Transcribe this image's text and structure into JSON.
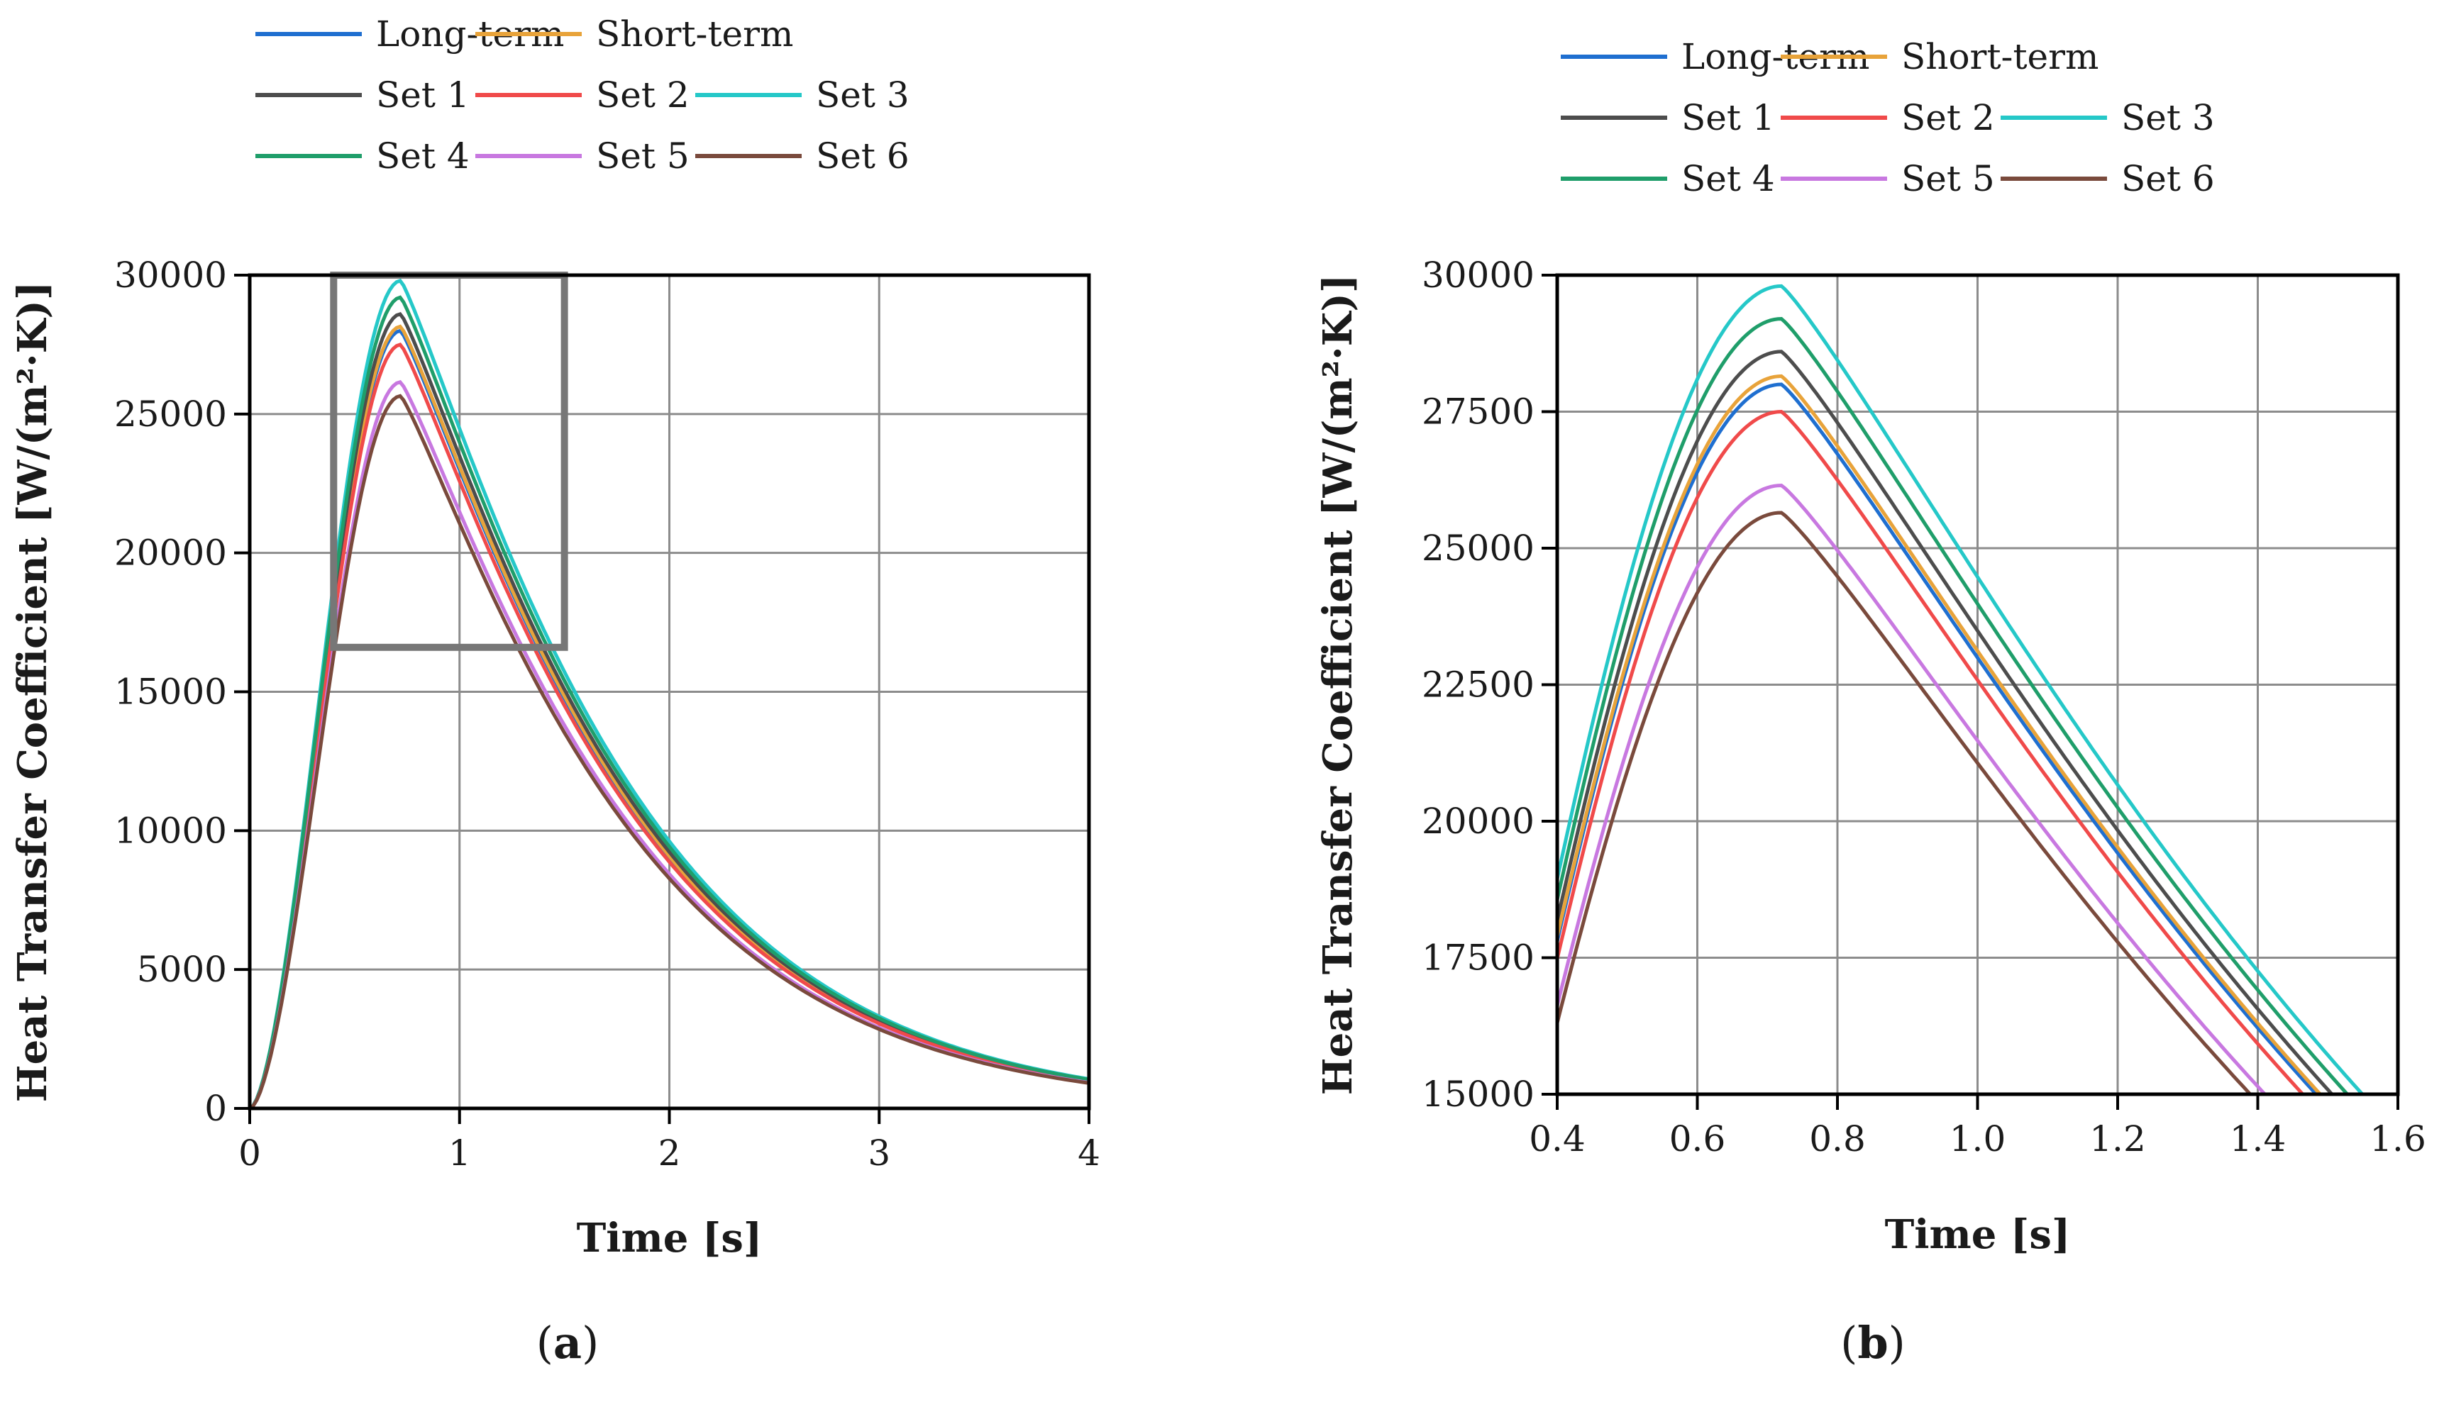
{
  "figure": {
    "panels": [
      "a",
      "b"
    ]
  },
  "legend": [
    {
      "name": "Long-term",
      "color": "#1f6fd0"
    },
    {
      "name": "Short-term",
      "color": "#e8a33a"
    },
    {
      "name": "Set 1",
      "color": "#4d4d4d"
    },
    {
      "name": "Set 2",
      "color": "#f04a4a"
    },
    {
      "name": "Set 3",
      "color": "#25c8c8"
    },
    {
      "name": "Set 4",
      "color": "#1f9e6a"
    },
    {
      "name": "Set 5",
      "color": "#c878e0"
    },
    {
      "name": "Set 6",
      "color": "#7a4a3c"
    }
  ],
  "chart_data": [
    {
      "type": "line",
      "panel_label_pre": "(",
      "panel_label_mid": "a",
      "panel_label_post": ")",
      "xlabel": "Time [s]",
      "ylabel": "Heat Transfer Coefficient [W/(m²·K)]",
      "xlim": [
        0,
        4
      ],
      "ylim": [
        0,
        30000
      ],
      "xticks": [
        "0",
        "1",
        "2",
        "3",
        "4"
      ],
      "yticks": [
        "0",
        "5000",
        "10000",
        "15000",
        "20000",
        "25000",
        "30000"
      ],
      "grid": true,
      "zoom_box": {
        "x": [
          0.4,
          1.5
        ],
        "y": [
          16600,
          30000
        ],
        "color": "#777777"
      },
      "series": [
        {
          "name": "Long-term",
          "peak": 28000
        },
        {
          "name": "Short-term",
          "peak": 28150
        },
        {
          "name": "Set 1",
          "peak": 28600
        },
        {
          "name": "Set 2",
          "peak": 27500
        },
        {
          "name": "Set 3",
          "peak": 29800
        },
        {
          "name": "Set 4",
          "peak": 29200
        },
        {
          "name": "Set 5",
          "peak": 26150
        },
        {
          "name": "Set 6",
          "peak": 25650
        }
      ]
    },
    {
      "type": "line",
      "panel_label_pre": "(",
      "panel_label_mid": "b",
      "panel_label_post": ")",
      "xlabel": "Time [s]",
      "ylabel": "Heat Transfer Coefficient [W/(m²·K)]",
      "xlim": [
        0.4,
        1.6
      ],
      "ylim": [
        15000,
        30000
      ],
      "xticks": [
        "0.4",
        "0.6",
        "0.8",
        "1.0",
        "1.2",
        "1.4",
        "1.6"
      ],
      "yticks": [
        "15000",
        "17500",
        "20000",
        "22500",
        "25000",
        "27500",
        "30000"
      ],
      "grid": true,
      "series": [
        {
          "name": "Long-term",
          "peak": 28000
        },
        {
          "name": "Short-term",
          "peak": 28150
        },
        {
          "name": "Set 1",
          "peak": 28600
        },
        {
          "name": "Set 2",
          "peak": 27500
        },
        {
          "name": "Set 3",
          "peak": 29800
        },
        {
          "name": "Set 4",
          "peak": 29200
        },
        {
          "name": "Set 5",
          "peak": 26150
        },
        {
          "name": "Set 6",
          "peak": 25650
        }
      ]
    }
  ]
}
